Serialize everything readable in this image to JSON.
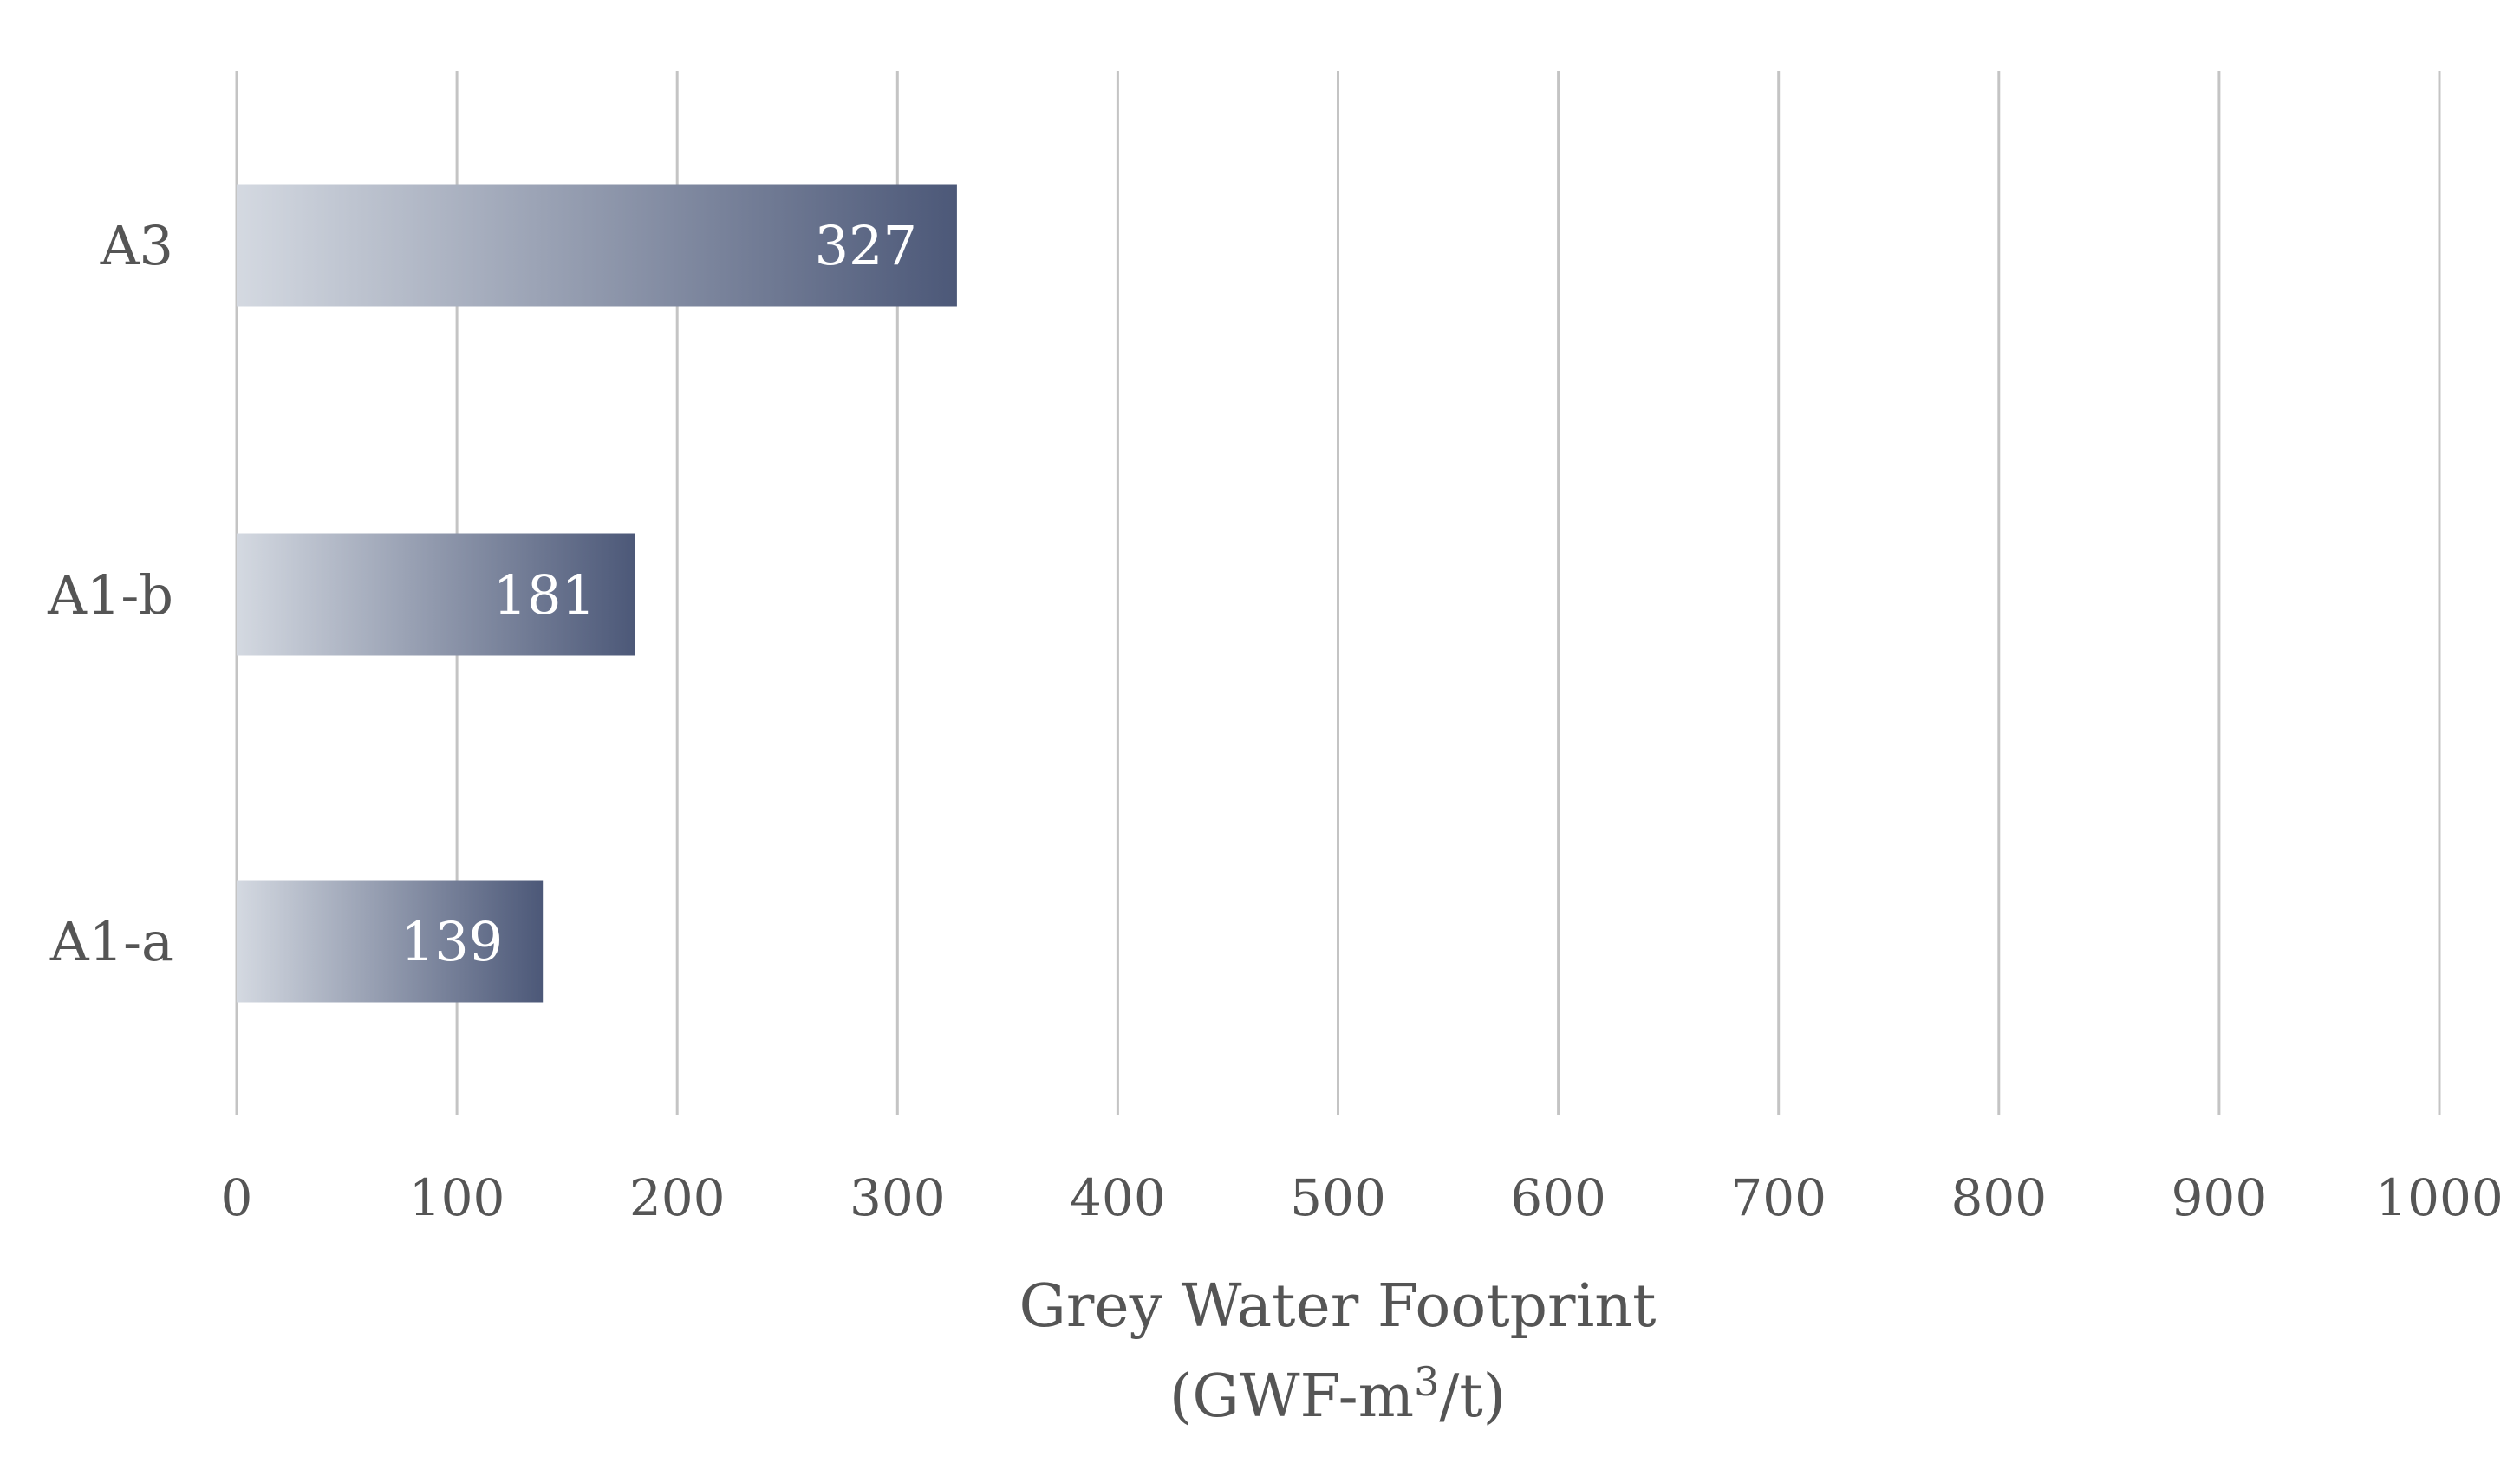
{
  "chart_data": {
    "type": "bar",
    "orientation": "horizontal",
    "categories": [
      "A3",
      "A1-b",
      "A1-a"
    ],
    "values": [
      327,
      181,
      139
    ],
    "data_labels": [
      "327",
      "181",
      "139"
    ],
    "xlim": [
      0,
      1000
    ],
    "x_ticks": [
      "0",
      "100",
      "200",
      "300",
      "400",
      "500",
      "600",
      "700",
      "800",
      "900",
      "1000"
    ],
    "x_tick_values": [
      0,
      100,
      200,
      300,
      400,
      500,
      600,
      700,
      800,
      900,
      1000
    ],
    "xlabel_line1": "Grey Water Footprint",
    "xlabel_line2_prefix": "(GWF-m",
    "xlabel_line2_sup": "3",
    "xlabel_line2_suffix": "/t)",
    "grid": "vertical",
    "legend": "none",
    "bar_gradient": [
      "#d4d9e1",
      "#4c5878"
    ]
  }
}
